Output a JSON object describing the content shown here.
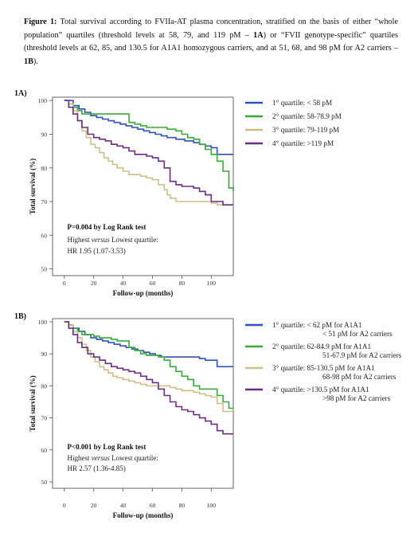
{
  "caption": {
    "figure_label": "Figure 1:",
    "text_1": " Total survival according to FVIIa-AT plasma concentration, stratified on the basis of either “whole population” quartiles (threshold levels at 58, 79, and 119 pM – ",
    "ref_1": "1A",
    "text_2": ") or “FVII genotype-specific” quartiles (threshold levels at 62, 85, and 130.5 for A1A1 homozygous carriers, and at 51, 68, and 98 pM for A2 carriers – ",
    "ref_2": "1B",
    "text_3": ")."
  },
  "colors": {
    "q1": "#2f52b4",
    "q2": "#3aa83a",
    "q3": "#cdbf8a",
    "q4": "#6b2e7e",
    "axis": "#555555"
  },
  "chart_data": [
    {
      "type": "line",
      "panel_label": "1A)",
      "xlabel": "Follow-up (months)",
      "ylabel": "Total survival (%)",
      "xlim": [
        -8,
        115
      ],
      "ylim": [
        48,
        101
      ],
      "xticks": [
        0,
        20,
        40,
        60,
        80,
        100
      ],
      "yticks": [
        50,
        60,
        70,
        80,
        90,
        100
      ],
      "stat_text": "P=0.004 by Log Rank test",
      "note_prefix": "Highest ",
      "note_italic": "versus",
      "note_suffix": " Lowest quartile:",
      "hr_text": "HR 1.95 (1.07-3.53)",
      "series": [
        {
          "name": "1° quartile: < 58 pM",
          "name_line2": "",
          "color_key": "q1",
          "x": [
            0,
            3,
            6,
            10,
            14,
            18,
            22,
            26,
            30,
            34,
            38,
            42,
            46,
            50,
            54,
            58,
            62,
            66,
            70,
            76,
            82,
            88,
            92,
            96,
            100,
            104,
            108,
            112,
            115
          ],
          "y": [
            100,
            100,
            98.5,
            97.5,
            96.5,
            95.5,
            95,
            94.5,
            94,
            93.5,
            93,
            92.5,
            92,
            91.5,
            91,
            90.5,
            90,
            89.5,
            89,
            88.5,
            88,
            87.5,
            87,
            86.5,
            86,
            84,
            84,
            84,
            84
          ]
        },
        {
          "name": "2° quartile: 58-78.9 pM",
          "name_line2": "",
          "color_key": "q2",
          "x": [
            0,
            3,
            6,
            9,
            12,
            16,
            20,
            24,
            28,
            32,
            36,
            40,
            44,
            48,
            52,
            56,
            60,
            64,
            70,
            76,
            80,
            84,
            88,
            92,
            96,
            100,
            104,
            108,
            112,
            115
          ],
          "y": [
            100,
            99,
            98,
            97,
            96,
            96,
            96,
            96,
            96,
            96,
            96,
            96,
            93.5,
            93,
            92.5,
            92,
            92,
            92,
            91.5,
            91,
            90,
            89,
            88.5,
            87,
            85.5,
            84,
            82,
            79,
            74,
            73
          ]
        },
        {
          "name": "3° quartile: 79-119 pM",
          "name_line2": "",
          "color_key": "q3",
          "x": [
            0,
            3,
            6,
            9,
            12,
            15,
            18,
            21,
            24,
            27,
            30,
            33,
            36,
            40,
            44,
            48,
            52,
            56,
            60,
            64,
            68,
            70,
            72,
            76,
            80,
            84,
            88,
            92,
            96,
            100,
            104,
            108,
            112,
            115
          ],
          "y": [
            100,
            99,
            97,
            94,
            91,
            89,
            87,
            86,
            84.5,
            83,
            82,
            81,
            80,
            79,
            78,
            78,
            77.5,
            77,
            76.5,
            75,
            73.5,
            72,
            71,
            70,
            70,
            70,
            70,
            70,
            70,
            69.5,
            69,
            69,
            69,
            69
          ]
        },
        {
          "name": "4° quartile: >119 pM",
          "name_line2": "",
          "color_key": "q4",
          "x": [
            0,
            3,
            6,
            9,
            12,
            16,
            20,
            24,
            28,
            32,
            36,
            40,
            44,
            48,
            52,
            56,
            60,
            64,
            68,
            72,
            76,
            80,
            84,
            88,
            92,
            96,
            100,
            104,
            108,
            112,
            115
          ],
          "y": [
            100,
            98,
            96,
            94,
            92,
            90,
            89,
            88.5,
            88,
            87,
            86.5,
            86,
            85,
            84,
            84,
            83.5,
            83,
            82,
            80,
            76,
            75,
            74.5,
            74.5,
            74,
            73,
            72,
            70,
            70,
            69,
            69,
            69
          ]
        }
      ]
    },
    {
      "type": "line",
      "panel_label": "1B)",
      "xlabel": "Follow-up (months)",
      "ylabel": "Total survival (%)",
      "xlim": [
        -8,
        115
      ],
      "ylim": [
        48,
        101
      ],
      "xticks": [
        0,
        20,
        40,
        60,
        80,
        100
      ],
      "yticks": [
        50,
        60,
        70,
        80,
        90,
        100
      ],
      "stat_text": "P<0.001 by Log Rank test",
      "note_prefix": "Highest ",
      "note_italic": "versus",
      "note_suffix": " Lowest quartile:",
      "hr_text": "HR 2.57 (1.36-4.85)",
      "series": [
        {
          "name": "1° quartile: < 62 pM for A1A1",
          "name_line2": "< 51 pM for A2 carriers",
          "color_key": "q1",
          "x": [
            0,
            3,
            6,
            10,
            14,
            18,
            22,
            26,
            30,
            34,
            38,
            42,
            46,
            50,
            54,
            58,
            62,
            66,
            70,
            76,
            82,
            88,
            92,
            96,
            100,
            104,
            108,
            112,
            115
          ],
          "y": [
            100,
            99,
            98,
            97,
            96,
            95,
            94.5,
            94,
            93.5,
            93,
            92.5,
            92,
            91.5,
            91,
            90.5,
            90,
            89.5,
            89,
            89,
            89,
            89,
            89,
            88.5,
            88,
            88,
            86,
            86,
            86,
            86
          ]
        },
        {
          "name": "2° quartile: 62-84.9 pM for A1A1",
          "name_line2": "51-67.9 pM for A2 carriers",
          "color_key": "q2",
          "x": [
            0,
            3,
            6,
            9,
            12,
            16,
            20,
            24,
            28,
            32,
            36,
            40,
            44,
            48,
            52,
            56,
            60,
            64,
            68,
            72,
            76,
            80,
            84,
            88,
            92,
            96,
            100,
            104,
            108,
            112,
            115
          ],
          "y": [
            100,
            99,
            98,
            97,
            96,
            96,
            95.5,
            95,
            95,
            94.5,
            94,
            94,
            92,
            91,
            90,
            89.5,
            89.5,
            89,
            88,
            86,
            84.5,
            83,
            82,
            80,
            79,
            79,
            79,
            77,
            75,
            73,
            73
          ]
        },
        {
          "name": "3° quartile: 85-130.5 pM for A1A1",
          "name_line2": "68-98 pM for A2 carriers",
          "color_key": "q3",
          "x": [
            0,
            3,
            6,
            9,
            12,
            15,
            18,
            21,
            24,
            27,
            30,
            33,
            36,
            40,
            44,
            48,
            52,
            56,
            60,
            64,
            68,
            72,
            76,
            80,
            84,
            88,
            92,
            96,
            100,
            104,
            108,
            112,
            115
          ],
          "y": [
            100,
            99,
            97,
            95,
            93,
            91,
            89,
            87.5,
            86,
            85,
            84,
            83,
            82.5,
            82,
            81.5,
            81,
            80.5,
            80,
            80,
            80,
            80,
            79.5,
            79,
            78.5,
            78.5,
            78,
            77.5,
            77,
            76.5,
            74.5,
            72,
            72,
            72
          ]
        },
        {
          "name": "4° quartile: >130.5 pM for A1A1",
          "name_line2": ">98 pM for A2 carriers",
          "color_key": "q4",
          "x": [
            0,
            3,
            6,
            9,
            12,
            16,
            20,
            24,
            28,
            32,
            36,
            40,
            44,
            48,
            52,
            56,
            60,
            64,
            68,
            72,
            76,
            80,
            84,
            88,
            92,
            96,
            100,
            104,
            108,
            112,
            115
          ],
          "y": [
            100,
            98,
            96,
            93.5,
            92,
            90,
            89,
            88,
            87,
            86,
            85.5,
            85,
            84.5,
            84,
            83,
            82,
            81,
            79,
            77,
            75,
            73.5,
            72.5,
            72,
            71,
            70,
            69,
            68,
            66,
            65,
            65,
            65
          ]
        }
      ]
    }
  ]
}
